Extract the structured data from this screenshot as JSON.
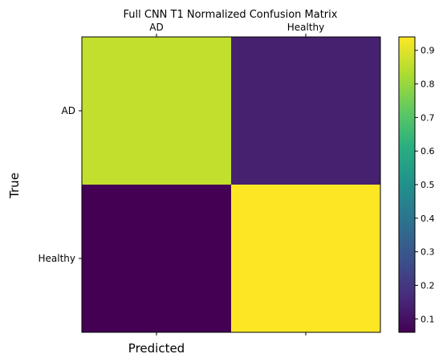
{
  "chart_data": {
    "type": "heatmap",
    "title": "Full CNN T1 Normalized Confusion Matrix",
    "xlabel": "Predicted",
    "ylabel": "True",
    "x_categories": [
      "AD",
      "Healthy"
    ],
    "y_categories": [
      "AD",
      "Healthy"
    ],
    "matrix": [
      [
        0.86,
        0.14
      ],
      [
        0.06,
        0.94
      ]
    ],
    "colormap": "viridis",
    "colorbar": {
      "range": [
        0.06,
        0.94
      ],
      "ticks": [
        0.1,
        0.2,
        0.3,
        0.4,
        0.5,
        0.6,
        0.7,
        0.8,
        0.9
      ],
      "tick_labels": [
        "0.1",
        "0.2",
        "0.3",
        "0.4",
        "0.5",
        "0.6",
        "0.7",
        "0.8",
        "0.9"
      ]
    },
    "x_tick_position": "top",
    "grid": false
  }
}
